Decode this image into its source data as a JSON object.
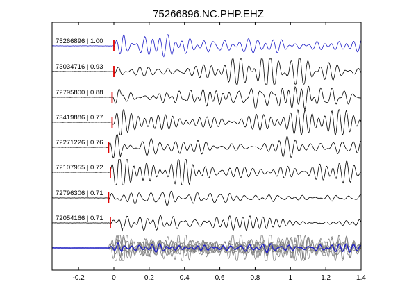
{
  "chart_data": {
    "type": "line",
    "title": "75266896.NC.PHP.EHZ",
    "xlabel": "",
    "ylabel": "",
    "xlim": [
      -0.35,
      1.4
    ],
    "xticks": [
      -0.2,
      0,
      0.2,
      0.4,
      0.6,
      0.8,
      1,
      1.2,
      1.4
    ],
    "xtick_labels": [
      "-0.2",
      "0",
      "0.2",
      "0.4",
      "0.6",
      "0.8",
      "1",
      "1.2",
      "1.4"
    ],
    "yticks_shown": false,
    "grid": false,
    "colors": {
      "reference_trace": "#1f1fc8",
      "trace": "#000000",
      "pick_marker": "#e00000",
      "stack_member": "#808080",
      "stack_mean": "#1f1fc8"
    },
    "series": [
      {
        "name": "75266896 | 1.00",
        "event_id": "75266896",
        "correlation": 1.0,
        "pick_time": 0.0,
        "reference": true
      },
      {
        "name": "73034716 | 0.93",
        "event_id": "73034716",
        "correlation": 0.93,
        "pick_time": 0.0,
        "reference": false
      },
      {
        "name": "72795800 | 0.88",
        "event_id": "72795800",
        "correlation": 0.88,
        "pick_time": -0.01,
        "reference": false
      },
      {
        "name": "73419886 | 0.77",
        "event_id": "73419886",
        "correlation": 0.77,
        "pick_time": -0.01,
        "reference": false
      },
      {
        "name": "72271226 | 0.76",
        "event_id": "72271226",
        "correlation": 0.76,
        "pick_time": -0.03,
        "reference": false
      },
      {
        "name": "72107955 | 0.72",
        "event_id": "72107955",
        "correlation": 0.72,
        "pick_time": -0.02,
        "reference": false
      },
      {
        "name": "72796306 | 0.71",
        "event_id": "72796306",
        "correlation": 0.71,
        "pick_time": -0.03,
        "reference": false
      },
      {
        "name": "72054166 | 0.71",
        "event_id": "72054166",
        "correlation": 0.71,
        "pick_time": -0.02,
        "reference": false
      }
    ],
    "stack": {
      "member_count": 8,
      "mean_shown": true
    }
  }
}
